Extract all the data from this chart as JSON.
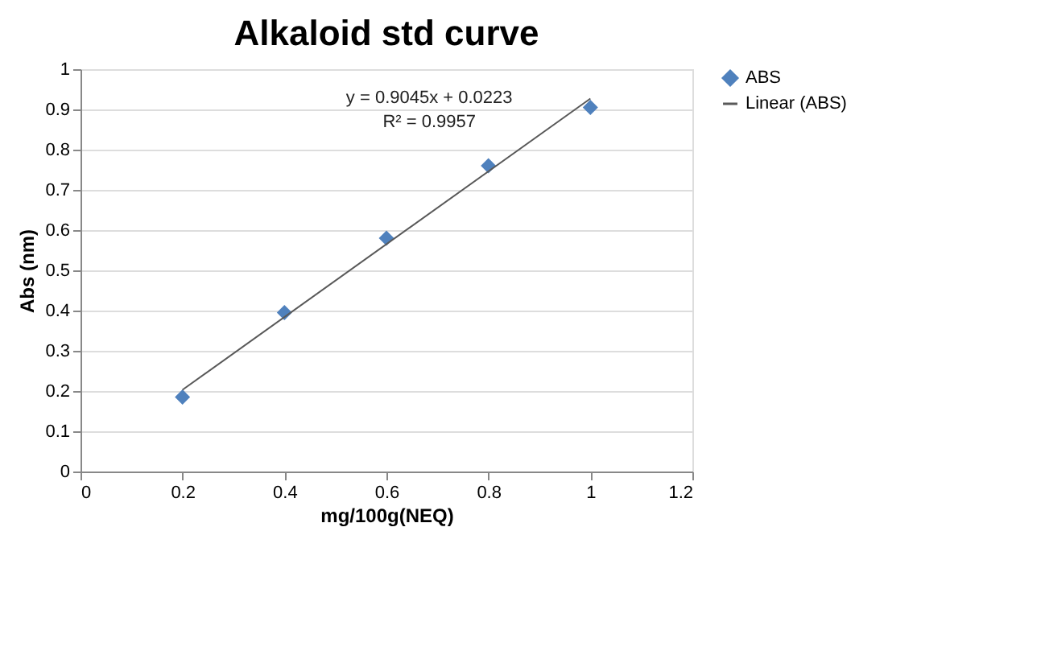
{
  "chart_data": {
    "type": "scatter",
    "title": "Alkaloid std curve",
    "xlabel": "mg/100g(NEQ)",
    "ylabel": "Abs (nm)",
    "series": [
      {
        "name": "ABS",
        "color": "#4f81bd",
        "marker": "diamond",
        "x": [
          0.2,
          0.4,
          0.6,
          0.8,
          1.0
        ],
        "values": [
          0.185,
          0.395,
          0.58,
          0.76,
          0.905
        ]
      },
      {
        "name": "Linear (ABS)",
        "type": "line",
        "color": "#595959",
        "line_style": "solid",
        "x": [
          0.2,
          1.0
        ],
        "values": [
          0.203,
          0.927
        ]
      }
    ],
    "annotations": [
      "y = 0.9045x + 0.0223",
      "R² = 0.9957"
    ],
    "xlim": [
      0,
      1.2
    ],
    "xticks": [
      0,
      0.2,
      0.4,
      0.6,
      0.8,
      1,
      1.2
    ],
    "ylim": [
      0,
      1
    ],
    "yticks": [
      0,
      0.1,
      0.2,
      0.3,
      0.4,
      0.5,
      0.6,
      0.7,
      0.8,
      0.9,
      1
    ],
    "grid": "y",
    "legend": "right"
  }
}
